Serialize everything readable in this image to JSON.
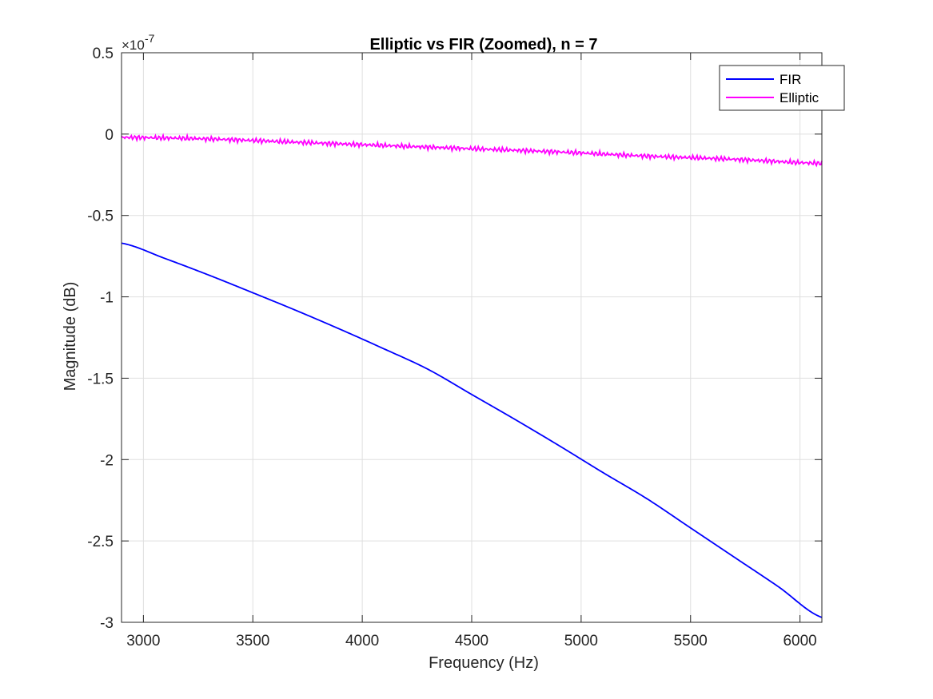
{
  "chart_data": {
    "type": "line",
    "title": "Elliptic vs FIR (Zoomed), n = 7",
    "xlabel": "Frequency (Hz)",
    "ylabel": "Magnitude (dB)",
    "y_exponent_base": "×10",
    "y_exponent_power": "-7",
    "xlim": [
      2900,
      6100
    ],
    "ylim": [
      -3.0,
      0.5
    ],
    "xticks": [
      3000,
      3500,
      4000,
      4500,
      5000,
      5500,
      6000
    ],
    "yticks": [
      0.5,
      0,
      -0.5,
      -1,
      -1.5,
      -2,
      -2.5,
      -3
    ],
    "ytick_labels": [
      "0.5",
      "0",
      "-0.5",
      "-1",
      "-1.5",
      "-2",
      "-2.5",
      "-3"
    ],
    "grid": true,
    "legend_position": "top-right",
    "series": [
      {
        "name": "FIR",
        "color": "#0000ff",
        "x": [
          2900,
          3100,
          3300,
          3500,
          3700,
          3900,
          4100,
          4300,
          4500,
          4700,
          4900,
          5100,
          5300,
          5500,
          5700,
          5900,
          6100
        ],
        "values": [
          -0.67,
          -0.765,
          -0.867,
          -0.975,
          -1.085,
          -1.2,
          -1.32,
          -1.445,
          -1.6,
          -1.755,
          -1.915,
          -2.08,
          -2.24,
          -2.42,
          -2.6,
          -2.78,
          -2.97
        ]
      },
      {
        "name": "Elliptic",
        "color": "#ff00ff",
        "x": [
          2900,
          3300,
          3700,
          4100,
          4500,
          4900,
          5300,
          5700,
          6100
        ],
        "values": [
          -0.02,
          -0.03,
          -0.05,
          -0.07,
          -0.09,
          -0.11,
          -0.135,
          -0.155,
          -0.18
        ]
      }
    ]
  }
}
